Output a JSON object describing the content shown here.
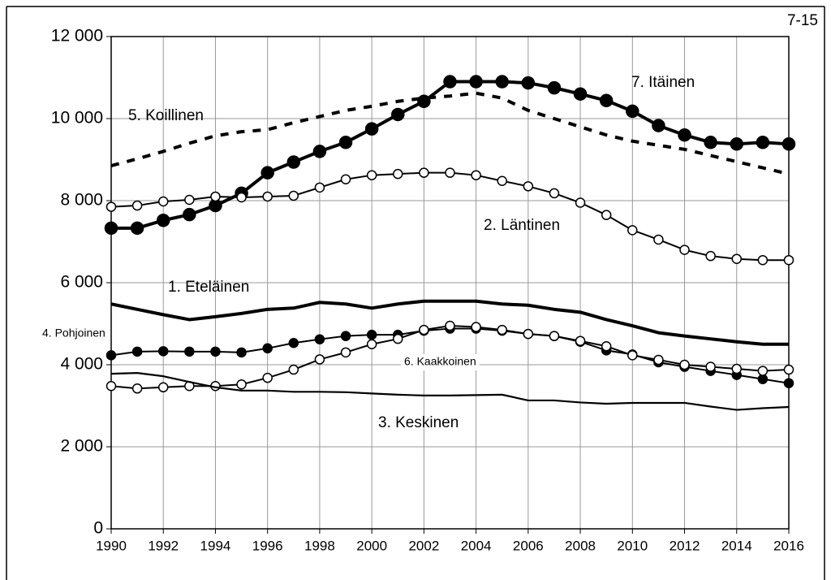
{
  "chart_data": {
    "type": "line",
    "corner_label": "7-15",
    "x": [
      1990,
      1991,
      1992,
      1993,
      1994,
      1995,
      1996,
      1997,
      1998,
      1999,
      2000,
      2001,
      2002,
      2003,
      2004,
      2005,
      2006,
      2007,
      2008,
      2009,
      2010,
      2011,
      2012,
      2013,
      2014,
      2015,
      2016
    ],
    "xlim": [
      1990,
      2016
    ],
    "xticks": [
      1990,
      1992,
      1994,
      1996,
      1998,
      2000,
      2002,
      2004,
      2006,
      2008,
      2010,
      2012,
      2014,
      2016
    ],
    "ylim": [
      0,
      12000
    ],
    "yticks": [
      {
        "value": 0,
        "label": "0"
      },
      {
        "value": 2000,
        "label": "2 000"
      },
      {
        "value": 4000,
        "label": "4 000"
      },
      {
        "value": 6000,
        "label": "6 000"
      },
      {
        "value": 8000,
        "label": "8 000"
      },
      {
        "value": 10000,
        "label": "10 000"
      },
      {
        "value": 12000,
        "label": "12 000"
      }
    ],
    "grid": true,
    "series": [
      {
        "name": "7. Itäinen",
        "color": "#000000",
        "line": "thick",
        "marker": "filled-large",
        "values": [
          7330,
          7330,
          7520,
          7660,
          7880,
          8180,
          8680,
          8940,
          9200,
          9420,
          9750,
          10100,
          10420,
          10900,
          10900,
          10900,
          10870,
          10750,
          10600,
          10440,
          10180,
          9830,
          9600,
          9420,
          9380,
          9420,
          9380
        ]
      },
      {
        "name": "5. Koillinen",
        "color": "#000000",
        "line": "dashed",
        "marker": null,
        "values": [
          8850,
          9020,
          9200,
          9400,
          9580,
          9680,
          9730,
          9900,
          10050,
          10200,
          10300,
          10420,
          10500,
          10550,
          10620,
          10500,
          10200,
          10000,
          9800,
          9600,
          9450,
          9350,
          9250,
          9100,
          8950,
          8800,
          8650
        ]
      },
      {
        "name": "2. Läntinen",
        "color": "#000000",
        "line": "normal",
        "marker": "open",
        "values": [
          7850,
          7880,
          7980,
          8020,
          8100,
          8080,
          8100,
          8120,
          8320,
          8520,
          8620,
          8650,
          8680,
          8680,
          8620,
          8480,
          8350,
          8180,
          7950,
          7650,
          7280,
          7050,
          6800,
          6650,
          6580,
          6550,
          6550
        ]
      },
      {
        "name": "1. Eteläinen",
        "color": "#000000",
        "line": "thick",
        "marker": null,
        "values": [
          5480,
          5350,
          5220,
          5100,
          5170,
          5250,
          5350,
          5380,
          5520,
          5480,
          5380,
          5480,
          5550,
          5550,
          5550,
          5480,
          5450,
          5350,
          5280,
          5100,
          4950,
          4780,
          4700,
          4630,
          4560,
          4500,
          4500
        ]
      },
      {
        "name": "4. Pohjoinen",
        "color": "#000000",
        "line": "normal",
        "marker": "filled",
        "values": [
          4230,
          4320,
          4330,
          4320,
          4320,
          4300,
          4400,
          4530,
          4620,
          4700,
          4730,
          4730,
          4830,
          4880,
          4880,
          4830,
          4750,
          4700,
          4560,
          4350,
          4250,
          4060,
          3950,
          3850,
          3750,
          3650,
          3550
        ]
      },
      {
        "name": "6. Kaakkoinen",
        "color": "#000000",
        "line": "normal",
        "marker": "open",
        "values": [
          3480,
          3420,
          3450,
          3480,
          3480,
          3520,
          3680,
          3880,
          4130,
          4300,
          4500,
          4630,
          4850,
          4950,
          4920,
          4850,
          4750,
          4700,
          4580,
          4450,
          4230,
          4120,
          4000,
          3950,
          3900,
          3850,
          3880
        ]
      },
      {
        "name": "3. Keskinen",
        "color": "#000000",
        "line": "thin",
        "marker": null,
        "values": [
          3780,
          3800,
          3720,
          3580,
          3450,
          3370,
          3370,
          3340,
          3340,
          3330,
          3300,
          3270,
          3250,
          3250,
          3260,
          3270,
          3130,
          3130,
          3080,
          3050,
          3070,
          3070,
          3070,
          2980,
          2900,
          2940,
          2970
        ]
      }
    ]
  }
}
